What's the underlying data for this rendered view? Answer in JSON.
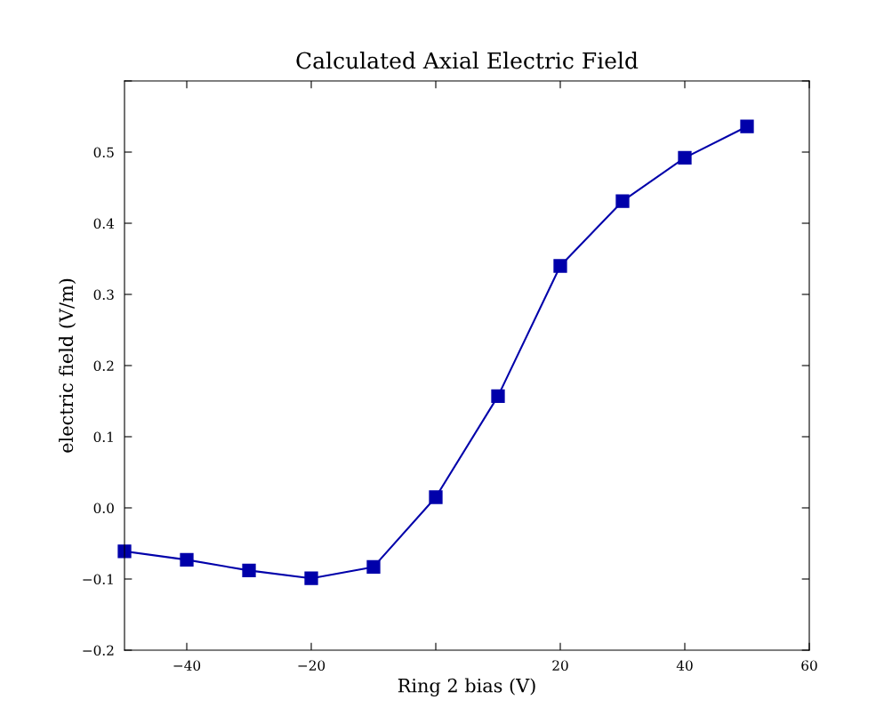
{
  "chart_data": {
    "type": "line",
    "title": "Calculated Axial Electric Field",
    "xlabel": "Ring 2 bias (V)",
    "ylabel": "electric field (V/m)",
    "x": [
      -50,
      -40,
      -30,
      -20,
      -10,
      0,
      10,
      20,
      30,
      40,
      50
    ],
    "series": [
      {
        "color": "#0000aa",
        "values": [
          -0.061,
          -0.073,
          -0.088,
          -0.099,
          -0.083,
          0.015,
          0.157,
          0.34,
          0.431,
          0.492,
          0.536
        ]
      }
    ],
    "xlim": [
      -50,
      60
    ],
    "xticks": [
      {
        "value": -40,
        "label": "−40"
      },
      {
        "value": -20,
        "label": "−20"
      },
      {
        "value": 0,
        "label": null
      },
      20,
      40,
      60
    ],
    "ylim": [
      -0.2,
      0.6
    ],
    "yticks": [
      {
        "value": -0.2,
        "label": "−0.2"
      },
      {
        "value": -0.1,
        "label": "−0.1"
      },
      {
        "value": 0.0,
        "label": "0.0"
      },
      0.1,
      0.2,
      0.3,
      0.4,
      0.5,
      {
        "value": 0.6,
        "label": null
      }
    ],
    "marker": "square",
    "line_style": "solid",
    "grid": false,
    "legend": false
  }
}
